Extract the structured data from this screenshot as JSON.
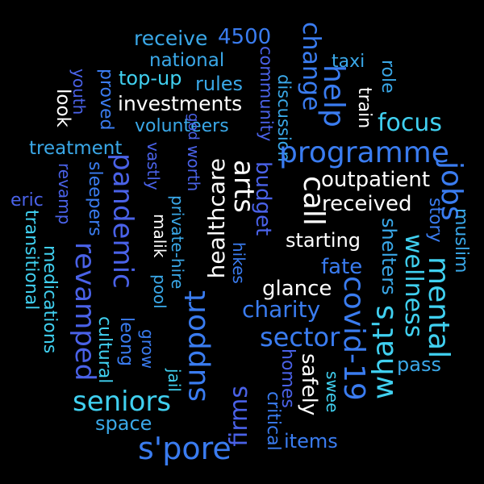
{
  "colors": {
    "background": "#000000",
    "palette": [
      "#ffffff",
      "#40d0f0",
      "#3aa8e8",
      "#3a7cf0",
      "#4a62e8",
      "#5a50e0"
    ]
  },
  "words": [
    {
      "text": "receive",
      "color": "#3aa8e8"
    },
    {
      "text": "4500",
      "color": "#3a7cf0"
    },
    {
      "text": "community",
      "color": "#4a62e8"
    },
    {
      "text": "change",
      "color": "#3a7cf0"
    },
    {
      "text": "national",
      "color": "#3aa8e8"
    },
    {
      "text": "taxi",
      "color": "#3aa8e8"
    },
    {
      "text": "role",
      "color": "#3aa8e8"
    },
    {
      "text": "top-up",
      "color": "#40d0f0"
    },
    {
      "text": "rules",
      "color": "#3aa8e8"
    },
    {
      "text": "help",
      "color": "#3a7cf0"
    },
    {
      "text": "youth",
      "color": "#4a62e8"
    },
    {
      "text": "proved",
      "color": "#3a7cf0"
    },
    {
      "text": "look",
      "color": "#ffffff"
    },
    {
      "text": "investments",
      "color": "#ffffff"
    },
    {
      "text": "discussion",
      "color": "#3aa8e8"
    },
    {
      "text": "train",
      "color": "#ffffff"
    },
    {
      "text": "focus",
      "color": "#40d0f0"
    },
    {
      "text": "volunteers",
      "color": "#3aa8e8"
    },
    {
      "text": "god",
      "color": "#4a62e8"
    },
    {
      "text": "treatment",
      "color": "#3aa8e8"
    },
    {
      "text": "vastly",
      "color": "#4a62e8"
    },
    {
      "text": "worth",
      "color": "#4a62e8"
    },
    {
      "text": "healthcare",
      "color": "#ffffff"
    },
    {
      "text": "arts",
      "color": "#ffffff"
    },
    {
      "text": "budget",
      "color": "#4a62e8"
    },
    {
      "text": "programme",
      "color": "#3a7cf0"
    },
    {
      "text": "pandemic",
      "color": "#4a62e8"
    },
    {
      "text": "jobs",
      "color": "#3a7cf0"
    },
    {
      "text": "sleepers",
      "color": "#3a7cf0"
    },
    {
      "text": "revamp",
      "color": "#4a62e8"
    },
    {
      "text": "eric",
      "color": "#4a62e8"
    },
    {
      "text": "call",
      "color": "#ffffff"
    },
    {
      "text": "outpatient",
      "color": "#ffffff"
    },
    {
      "text": "received",
      "color": "#ffffff"
    },
    {
      "text": "story",
      "color": "#3a7cf0"
    },
    {
      "text": "muslim",
      "color": "#3aa8e8"
    },
    {
      "text": "transitional",
      "color": "#40d0f0"
    },
    {
      "text": "malik",
      "color": "#ffffff"
    },
    {
      "text": "private-hire",
      "color": "#3aa8e8"
    },
    {
      "text": "starting",
      "color": "#ffffff"
    },
    {
      "text": "pool",
      "color": "#3aa8e8"
    },
    {
      "text": "shelters",
      "color": "#3aa8e8"
    },
    {
      "text": "wellness",
      "color": "#40d0f0"
    },
    {
      "text": "mental",
      "color": "#40d0f0"
    },
    {
      "text": "hikes",
      "color": "#3a7cf0"
    },
    {
      "text": "fate",
      "color": "#3a7cf0"
    },
    {
      "text": "medications",
      "color": "#40d0f0"
    },
    {
      "text": "revamped",
      "color": "#4a62e8"
    },
    {
      "text": "support",
      "color": "#3a7cf0"
    },
    {
      "text": "glance",
      "color": "#ffffff"
    },
    {
      "text": "covid-19",
      "color": "#3a7cf0"
    },
    {
      "text": "leong",
      "color": "#3a7cf0"
    },
    {
      "text": "charity",
      "color": "#3a7cf0"
    },
    {
      "text": "cultural",
      "color": "#40d0f0"
    },
    {
      "text": "grow",
      "color": "#3a7cf0"
    },
    {
      "text": "jail",
      "color": "#40d0f0"
    },
    {
      "text": "sector",
      "color": "#3a7cf0"
    },
    {
      "text": "what's",
      "color": "#40d0f0"
    },
    {
      "text": "homes",
      "color": "#4a62e8"
    },
    {
      "text": "pass",
      "color": "#3aa8e8"
    },
    {
      "text": "seniors",
      "color": "#40d0f0"
    },
    {
      "text": "firms",
      "color": "#4a62e8"
    },
    {
      "text": "safely",
      "color": "#ffffff"
    },
    {
      "text": "swee",
      "color": "#40d0f0"
    },
    {
      "text": "space",
      "color": "#3aa8e8"
    },
    {
      "text": "critical",
      "color": "#3a7cf0"
    },
    {
      "text": "items",
      "color": "#3a7cf0"
    },
    {
      "text": "s'pore",
      "color": "#3a7cf0"
    }
  ]
}
